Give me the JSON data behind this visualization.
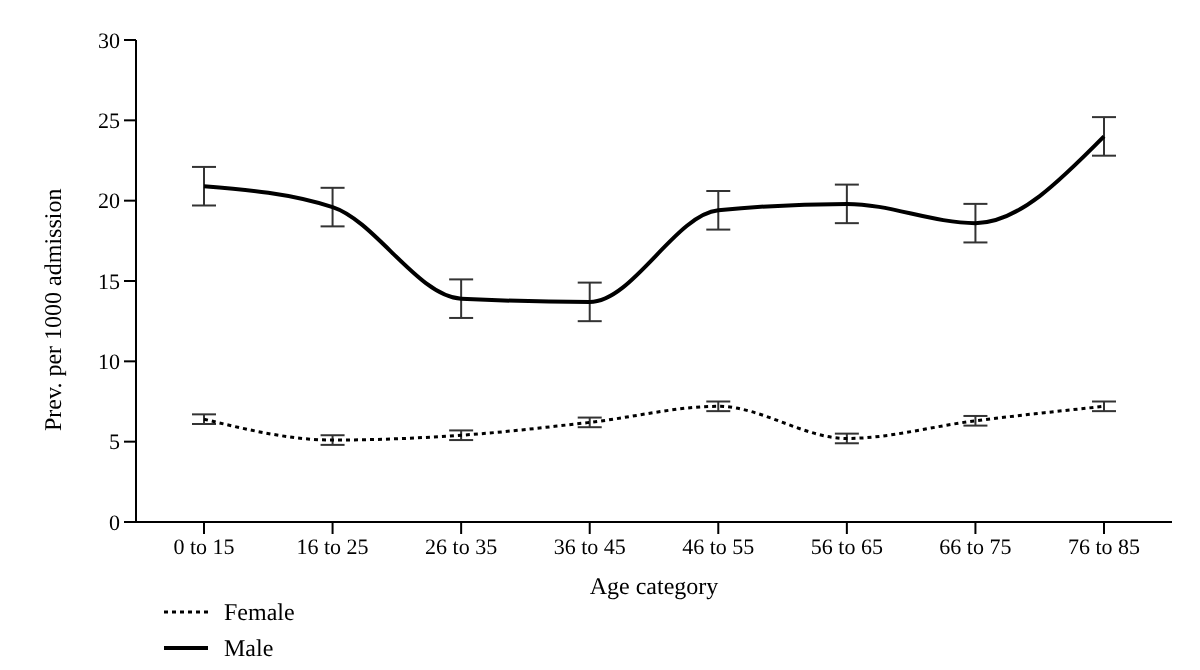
{
  "chart_data": {
    "type": "line",
    "xlabel": "Age category",
    "ylabel": "Prev. per 1000 admission",
    "categories": [
      "0 to 15",
      "16 to 25",
      "26 to 35",
      "36 to 45",
      "46 to 55",
      "56 to 65",
      "66 to 75",
      "76 to 85"
    ],
    "series": [
      {
        "name": "Female",
        "color": "#000000",
        "line_style": "dotted",
        "values": [
          6.4,
          5.1,
          5.4,
          6.2,
          7.2,
          5.2,
          6.3,
          7.2
        ],
        "errors": [
          0.3,
          0.3,
          0.3,
          0.3,
          0.3,
          0.3,
          0.3,
          0.3
        ]
      },
      {
        "name": "Male",
        "color": "#000000",
        "line_style": "solid",
        "values": [
          20.9,
          19.6,
          13.9,
          13.7,
          19.4,
          19.8,
          18.6,
          24.0
        ],
        "errors": [
          1.2,
          1.2,
          1.2,
          1.2,
          1.2,
          1.2,
          1.2,
          1.2
        ]
      }
    ],
    "ylim": [
      0,
      30
    ],
    "yticks": [
      0,
      5,
      10,
      15,
      20,
      25,
      30
    ],
    "grid": false,
    "legend": "bottom left",
    "marker": "none"
  }
}
